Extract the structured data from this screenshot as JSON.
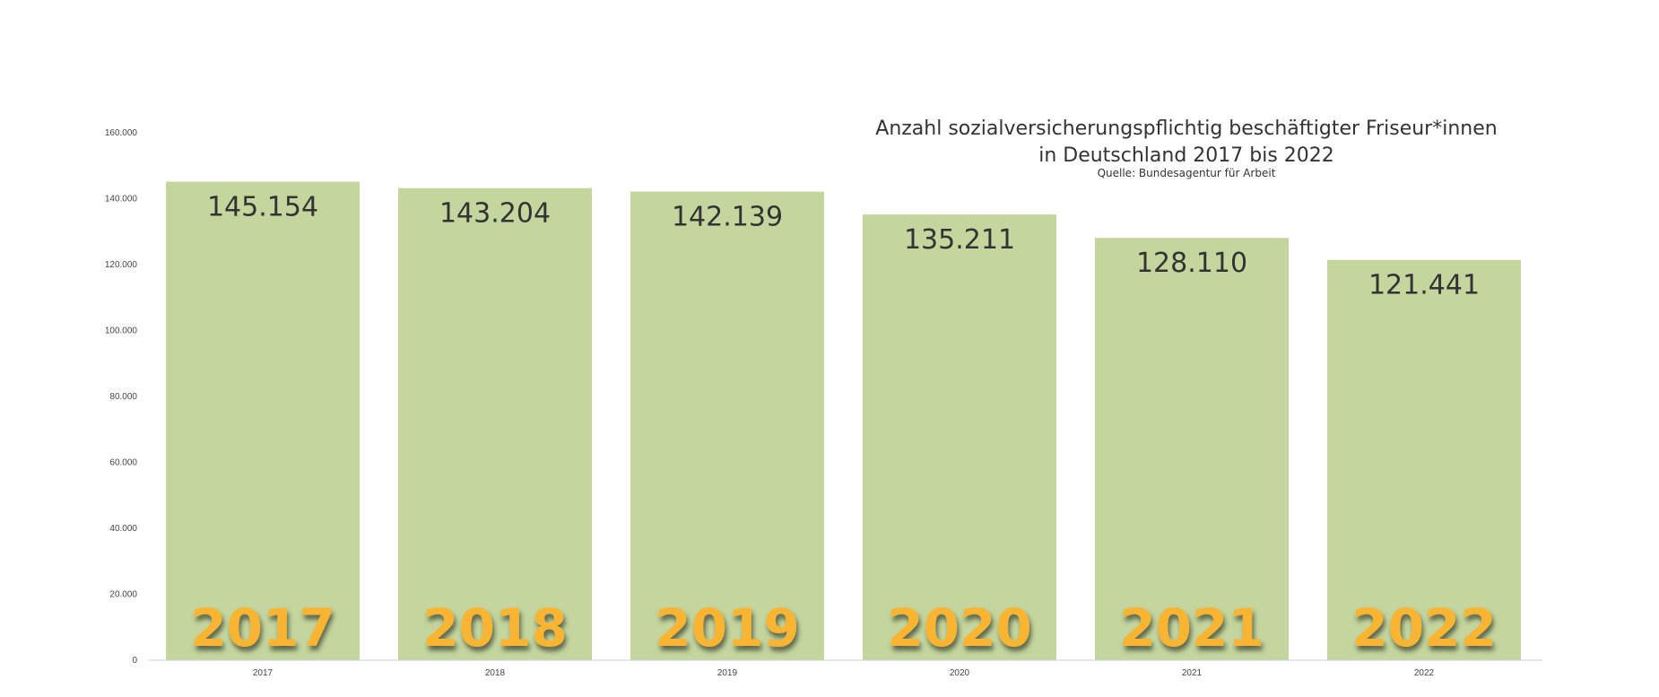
{
  "chart_data": {
    "type": "bar",
    "title_line1": "Anzahl sozialversicherungspflichtig beschäftigter Friseur*innen",
    "title_line2": "in Deutschland 2017 bis 2022",
    "source": "Quelle: Bundesagentur für Arbeit",
    "categories": [
      "2017",
      "2018",
      "2019",
      "2020",
      "2021",
      "2022"
    ],
    "values": [
      145154,
      143204,
      142139,
      135211,
      128110,
      121441
    ],
    "value_labels": [
      "145.154",
      "143.204",
      "142.139",
      "135.211",
      "128.110",
      "121.441"
    ],
    "ylim": [
      0,
      160000
    ],
    "yticks": [
      0,
      20000,
      40000,
      60000,
      80000,
      100000,
      120000,
      140000,
      160000
    ],
    "ytick_labels": [
      "0",
      "20.000",
      "40.000",
      "60.000",
      "80.000",
      "100.000",
      "120.000",
      "140.000",
      "160.000"
    ],
    "bar_color": "#C4D69E",
    "year_label_color": "#F9B530",
    "grid": false
  }
}
